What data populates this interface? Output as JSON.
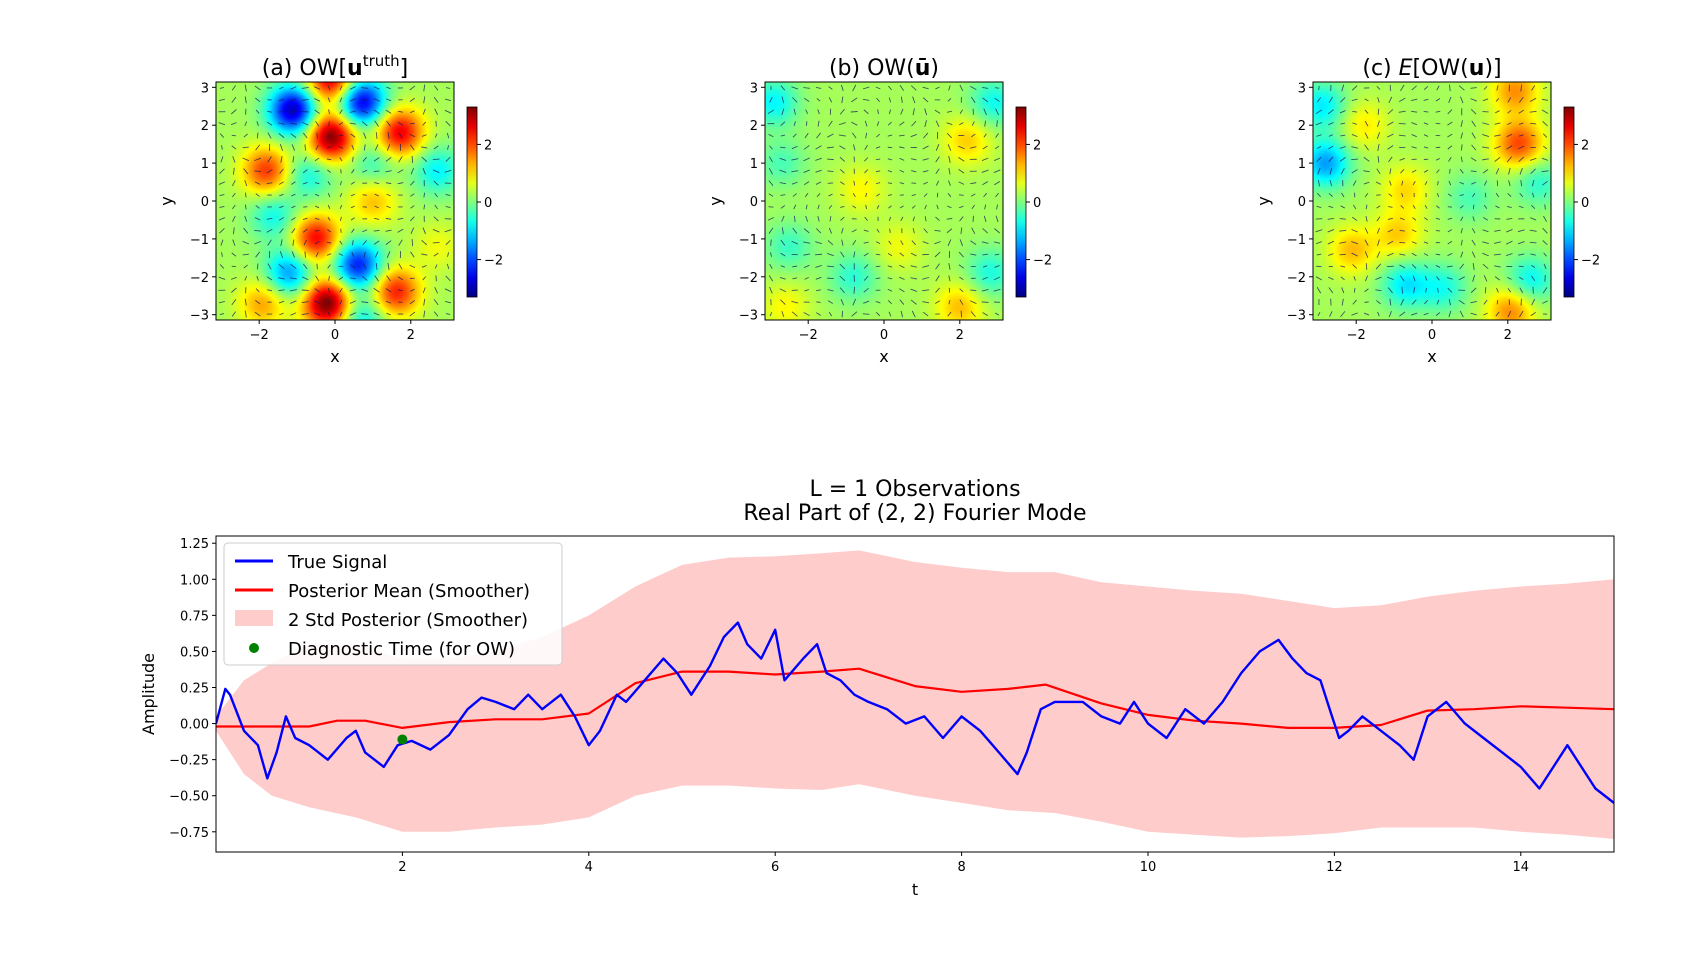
{
  "chart_data": [
    {
      "type": "heatmap",
      "title_prefix": "(a) OW[",
      "title_bold": "u",
      "title_sup": "truth",
      "title_suffix": "]",
      "xlabel": "x",
      "ylabel": "y",
      "xlim": [
        -3.14,
        3.14
      ],
      "ylim": [
        -3.14,
        3.14
      ],
      "xticks": [
        -2,
        0,
        2
      ],
      "yticks": [
        -3,
        -2,
        -1,
        0,
        1,
        2,
        3
      ],
      "colorbar": {
        "min": -3.3,
        "max": 3.3,
        "ticks": [
          2,
          0,
          -2
        ],
        "colormap": "jet"
      },
      "features": [
        {
          "x": -1.1,
          "y": 2.4,
          "v": -3.2
        },
        {
          "x": 0.7,
          "y": 2.6,
          "v": -3.0
        },
        {
          "x": -0.1,
          "y": 3.2,
          "v": 2.6
        },
        {
          "x": -0.1,
          "y": 1.7,
          "v": 3.1
        },
        {
          "x": 1.7,
          "y": 1.8,
          "v": 2.4
        },
        {
          "x": -1.8,
          "y": 0.8,
          "v": 1.9
        },
        {
          "x": -0.7,
          "y": 0.7,
          "v": -1.0
        },
        {
          "x": 1.0,
          "y": 1.0,
          "v": -0.8
        },
        {
          "x": 2.7,
          "y": 0.8,
          "v": -1.1
        },
        {
          "x": -1.6,
          "y": -0.4,
          "v": -1.0
        },
        {
          "x": -0.5,
          "y": -1.0,
          "v": 2.3
        },
        {
          "x": 0.6,
          "y": -1.7,
          "v": -2.6
        },
        {
          "x": -1.2,
          "y": -1.9,
          "v": -1.8
        },
        {
          "x": -0.2,
          "y": -2.7,
          "v": 3.2
        },
        {
          "x": 1.6,
          "y": -2.4,
          "v": 2.1
        },
        {
          "x": -1.9,
          "y": -2.7,
          "v": 1.2
        },
        {
          "x": 1.0,
          "y": 0.0,
          "v": 1.0
        },
        {
          "x": 0.7,
          "y": -3.1,
          "v": -1.2
        },
        {
          "x": 2.7,
          "y": -1.2,
          "v": 0.5
        }
      ]
    },
    {
      "type": "heatmap",
      "title_prefix": "(b) OW(",
      "title_bold": "ū",
      "title_sup": "",
      "title_suffix": ")",
      "xlabel": "x",
      "ylabel": "y",
      "xlim": [
        -3.14,
        3.14
      ],
      "ylim": [
        -3.14,
        3.14
      ],
      "xticks": [
        -2,
        0,
        2
      ],
      "yticks": [
        -3,
        -2,
        -1,
        0,
        1,
        2,
        3
      ],
      "colorbar": {
        "min": -3.3,
        "max": 3.3,
        "ticks": [
          2,
          0,
          -2
        ],
        "colormap": "jet"
      },
      "features": [
        {
          "x": -2.9,
          "y": 2.6,
          "v": -1.1
        },
        {
          "x": 2.9,
          "y": 2.6,
          "v": -1.0
        },
        {
          "x": 2.2,
          "y": 1.6,
          "v": 0.9
        },
        {
          "x": -2.7,
          "y": 1.0,
          "v": -0.6
        },
        {
          "x": -0.6,
          "y": 0.3,
          "v": 0.6
        },
        {
          "x": -2.5,
          "y": -1.2,
          "v": -0.7
        },
        {
          "x": -0.8,
          "y": -2.0,
          "v": -0.8
        },
        {
          "x": 2.0,
          "y": -2.8,
          "v": 1.0
        },
        {
          "x": 2.8,
          "y": -1.9,
          "v": -0.9
        },
        {
          "x": -2.6,
          "y": -2.8,
          "v": 0.6
        },
        {
          "x": 0.4,
          "y": -1.2,
          "v": 0.5
        }
      ]
    },
    {
      "type": "heatmap",
      "title_prefix": "(c) ",
      "title_italic": "E",
      "title_mid": "[OW(",
      "title_bold": "u",
      "title_sup": "",
      "title_suffix": ")]",
      "xlabel": "x",
      "ylabel": "y",
      "xlim": [
        -3.14,
        3.14
      ],
      "ylim": [
        -3.14,
        3.14
      ],
      "xticks": [
        -2,
        0,
        2
      ],
      "yticks": [
        -3,
        -2,
        -1,
        0,
        1,
        2,
        3
      ],
      "colorbar": {
        "min": -3.3,
        "max": 3.3,
        "ticks": [
          2,
          0,
          -2
        ],
        "colormap": "jet"
      },
      "features": [
        {
          "x": -2.8,
          "y": 1.0,
          "v": -1.7
        },
        {
          "x": -2.9,
          "y": 2.5,
          "v": -1.2
        },
        {
          "x": 2.3,
          "y": 1.5,
          "v": 1.8
        },
        {
          "x": 2.2,
          "y": 2.9,
          "v": 1.3
        },
        {
          "x": -0.7,
          "y": 0.3,
          "v": 0.8
        },
        {
          "x": -0.9,
          "y": -0.9,
          "v": 0.9
        },
        {
          "x": -2.1,
          "y": -1.3,
          "v": 1.0
        },
        {
          "x": -0.7,
          "y": -2.2,
          "v": -1.2
        },
        {
          "x": 0.3,
          "y": -2.3,
          "v": -0.9
        },
        {
          "x": 2.6,
          "y": -2.1,
          "v": -1.1
        },
        {
          "x": 2.1,
          "y": -2.9,
          "v": 1.4
        },
        {
          "x": 1.0,
          "y": 0.1,
          "v": -0.6
        },
        {
          "x": 2.8,
          "y": 0.5,
          "v": -0.8
        },
        {
          "x": -1.8,
          "y": 2.0,
          "v": 0.7
        }
      ]
    },
    {
      "type": "line",
      "title": "L = 1 Observations",
      "subtitle": "Real Part of (2, 2) Fourier Mode",
      "xlabel": "t",
      "ylabel": "Amplitude",
      "xlim": [
        0,
        15
      ],
      "ylim": [
        -0.89,
        1.3
      ],
      "xticks": [
        2,
        4,
        6,
        8,
        10,
        12,
        14
      ],
      "yticks": [
        -0.75,
        -0.5,
        -0.25,
        0.0,
        0.25,
        0.5,
        0.75,
        1.0,
        1.25
      ],
      "ytick_labels": [
        "−0.75",
        "−0.50",
        "−0.25",
        "0.00",
        "0.25",
        "0.50",
        "0.75",
        "1.00",
        "1.25"
      ],
      "legend_position": "top-left",
      "series": [
        {
          "name": "True Signal",
          "color": "#0000ff",
          "t": [
            0,
            0.1,
            0.15,
            0.3,
            0.45,
            0.55,
            0.65,
            0.75,
            0.85,
            1.0,
            1.2,
            1.4,
            1.5,
            1.6,
            1.8,
            1.95,
            2.1,
            2.3,
            2.5,
            2.7,
            2.85,
            3.0,
            3.2,
            3.35,
            3.5,
            3.7,
            3.85,
            4.0,
            4.12,
            4.3,
            4.4,
            4.6,
            4.8,
            4.95,
            5.1,
            5.3,
            5.45,
            5.6,
            5.7,
            5.85,
            6.0,
            6.1,
            6.3,
            6.45,
            6.55,
            6.7,
            6.85,
            7.0,
            7.2,
            7.4,
            7.6,
            7.8,
            8.0,
            8.2,
            8.4,
            8.6,
            8.7,
            8.85,
            9.0,
            9.3,
            9.5,
            9.7,
            9.85,
            10.0,
            10.2,
            10.4,
            10.6,
            10.8,
            11.0,
            11.2,
            11.4,
            11.55,
            11.7,
            11.85,
            11.95,
            12.05,
            12.15,
            12.3,
            12.5,
            12.7,
            12.85,
            13.0,
            13.2,
            13.4,
            13.6,
            13.8,
            14.0,
            14.2,
            14.35,
            14.5,
            14.65,
            14.8,
            15.0
          ],
          "values": [
            0.0,
            0.24,
            0.2,
            -0.05,
            -0.15,
            -0.38,
            -0.2,
            0.05,
            -0.1,
            -0.15,
            -0.25,
            -0.1,
            -0.05,
            -0.2,
            -0.3,
            -0.15,
            -0.12,
            -0.18,
            -0.08,
            0.1,
            0.18,
            0.15,
            0.1,
            0.2,
            0.1,
            0.2,
            0.05,
            -0.15,
            -0.05,
            0.2,
            0.15,
            0.3,
            0.45,
            0.35,
            0.2,
            0.4,
            0.6,
            0.7,
            0.55,
            0.45,
            0.65,
            0.3,
            0.45,
            0.55,
            0.35,
            0.3,
            0.2,
            0.15,
            0.1,
            0.0,
            0.05,
            -0.1,
            0.05,
            -0.05,
            -0.2,
            -0.35,
            -0.2,
            0.1,
            0.15,
            0.15,
            0.05,
            0.0,
            0.15,
            0.0,
            -0.1,
            0.1,
            0.0,
            0.15,
            0.35,
            0.5,
            0.58,
            0.45,
            0.35,
            0.3,
            0.1,
            -0.1,
            -0.05,
            0.05,
            -0.05,
            -0.15,
            -0.25,
            0.05,
            0.15,
            0.0,
            -0.1,
            -0.2,
            -0.3,
            -0.45,
            -0.3,
            -0.15,
            -0.3,
            -0.45,
            -0.55
          ]
        },
        {
          "name": "Posterior Mean (Smoother)",
          "color": "#ff0000",
          "t": [
            0,
            0.5,
            1.0,
            1.3,
            1.6,
            2.0,
            2.5,
            3.0,
            3.5,
            4.0,
            4.5,
            5.0,
            5.5,
            6.0,
            6.5,
            6.9,
            7.5,
            8.0,
            8.5,
            8.9,
            9.5,
            10.0,
            10.5,
            11.0,
            11.5,
            12.0,
            12.5,
            13.0,
            13.5,
            14.0,
            14.5,
            15.0
          ],
          "values": [
            -0.02,
            -0.02,
            -0.02,
            0.02,
            0.02,
            -0.03,
            0.01,
            0.03,
            0.03,
            0.07,
            0.28,
            0.36,
            0.36,
            0.34,
            0.36,
            0.38,
            0.26,
            0.22,
            0.24,
            0.27,
            0.14,
            0.06,
            0.02,
            0.0,
            -0.03,
            -0.03,
            -0.01,
            0.09,
            0.1,
            0.12,
            0.11,
            0.1
          ]
        },
        {
          "name": "2 Std Posterior (Smoother)",
          "color": "#ffcccc",
          "t": [
            0,
            0.3,
            0.6,
            1.0,
            1.5,
            2.0,
            2.5,
            3.0,
            3.5,
            4.0,
            4.5,
            5.0,
            5.5,
            6.0,
            6.5,
            6.9,
            7.5,
            8.0,
            8.5,
            9.0,
            9.5,
            10.0,
            10.5,
            11.0,
            11.5,
            12.0,
            12.5,
            13.0,
            13.5,
            14.0,
            14.5,
            15.0
          ],
          "upper": [
            0.05,
            0.3,
            0.42,
            0.55,
            0.55,
            0.45,
            0.45,
            0.5,
            0.6,
            0.75,
            0.95,
            1.1,
            1.15,
            1.16,
            1.18,
            1.2,
            1.12,
            1.08,
            1.05,
            1.05,
            0.98,
            0.95,
            0.92,
            0.9,
            0.85,
            0.8,
            0.82,
            0.88,
            0.92,
            0.95,
            0.97,
            1.0
          ],
          "lower": [
            -0.05,
            -0.35,
            -0.5,
            -0.58,
            -0.65,
            -0.75,
            -0.75,
            -0.72,
            -0.7,
            -0.65,
            -0.5,
            -0.43,
            -0.43,
            -0.45,
            -0.46,
            -0.42,
            -0.5,
            -0.55,
            -0.6,
            -0.62,
            -0.68,
            -0.75,
            -0.77,
            -0.79,
            -0.78,
            -0.76,
            -0.72,
            -0.72,
            -0.72,
            -0.75,
            -0.77,
            -0.8
          ]
        },
        {
          "name": "Diagnostic Time (for OW)",
          "color": "#008000",
          "points": [
            {
              "t": 2.0,
              "value": -0.11
            }
          ]
        }
      ]
    }
  ]
}
